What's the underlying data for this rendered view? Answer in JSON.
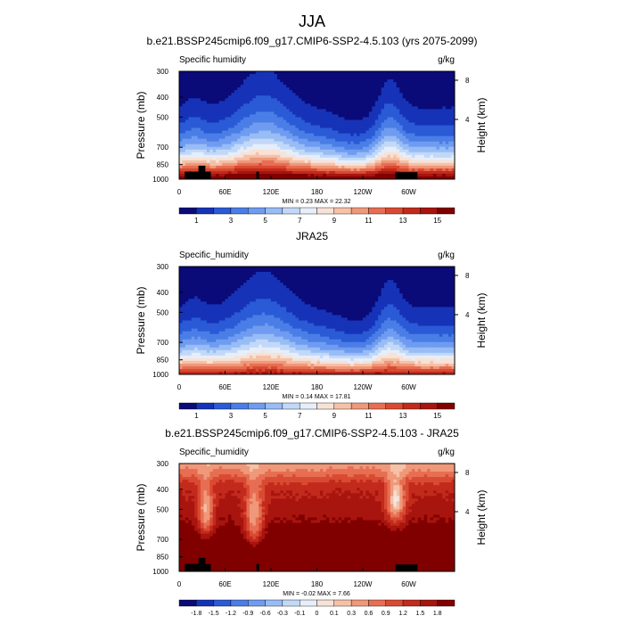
{
  "figure": {
    "season": "JJA"
  },
  "chart_data": [
    {
      "type": "heatmap",
      "title": "b.e21.BSSP245cmip6.f09_g17.CMIP6-SSP2-4.5.103 (yrs 2075-2099)",
      "variable": "Specific humidity",
      "units": "g/kg",
      "ylabel": "Pressure (mb)",
      "ylabel_right": "Height (km)",
      "pressure_ticks": [
        "300",
        "400",
        "500",
        "700",
        "850",
        "1000"
      ],
      "height_ticks": [
        "8",
        "4"
      ],
      "lon_ticks": [
        "0",
        "60E",
        "120E",
        "180",
        "120W",
        "60W"
      ],
      "min_label": "MIN =   0.23  MAX =  22.32",
      "levels": [
        "1",
        "3",
        "5",
        "7",
        "9",
        "11",
        "13",
        "15"
      ],
      "palette": "blue-white-red",
      "masked_topography": true
    },
    {
      "type": "heatmap",
      "title": "JRA25",
      "variable": "Specific_humidity",
      "units": "g/kg",
      "ylabel": "Pressure (mb)",
      "ylabel_right": "Height (km)",
      "pressure_ticks": [
        "300",
        "400",
        "500",
        "700",
        "850",
        "1000"
      ],
      "height_ticks": [
        "8",
        "4"
      ],
      "lon_ticks": [
        "0",
        "60E",
        "120E",
        "180",
        "120W",
        "60W"
      ],
      "min_label": "MIN =   0.14  MAX =  17.81",
      "levels": [
        "1",
        "3",
        "5",
        "7",
        "9",
        "11",
        "13",
        "15"
      ],
      "palette": "blue-white-red",
      "masked_topography": false
    },
    {
      "type": "heatmap",
      "title": "b.e21.BSSP245cmip6.f09_g17.CMIP6-SSP2-4.5.103 - JRA25",
      "variable": "Specific_humidity",
      "units": "g/kg",
      "ylabel": "Pressure (mb)",
      "ylabel_right": "Height (km)",
      "pressure_ticks": [
        "300",
        "400",
        "500",
        "700",
        "850",
        "1000"
      ],
      "height_ticks": [
        "8",
        "4"
      ],
      "lon_ticks": [
        "0",
        "60E",
        "120E",
        "180",
        "120W",
        "60W"
      ],
      "min_label": "MIN =  -0.02  MAX =   7.66",
      "levels": [
        "-1.8",
        "-1.5",
        "-1.2",
        "-0.9",
        "-0.6",
        "-0.3",
        "-0.1",
        "0",
        "0.1",
        "0.3",
        "0.6",
        "0.9",
        "1.2",
        "1.5",
        "1.8"
      ],
      "palette": "blue-white-red-diff",
      "masked_topography": true
    }
  ],
  "colors": {
    "abs_scale": [
      "#0a0a78",
      "#1633b8",
      "#2a5ad6",
      "#4a7ee6",
      "#6f9cf0",
      "#98bcf5",
      "#c2d8f8",
      "#e6eefa",
      "#f8e2d6",
      "#f6c1a6",
      "#f0987a",
      "#e76e52",
      "#d94a32",
      "#c22a1c",
      "#a8140e",
      "#800000"
    ],
    "diff_scale": [
      "#0a0a78",
      "#1633b8",
      "#2a5ad6",
      "#4a7ee6",
      "#6f9cf0",
      "#98bcf5",
      "#c2d8f8",
      "#e6eefa",
      "#f8e2d6",
      "#f6c1a6",
      "#f0987a",
      "#e76e52",
      "#d94a32",
      "#c22a1c",
      "#a8140e",
      "#800000"
    ],
    "topography": "#000000"
  }
}
